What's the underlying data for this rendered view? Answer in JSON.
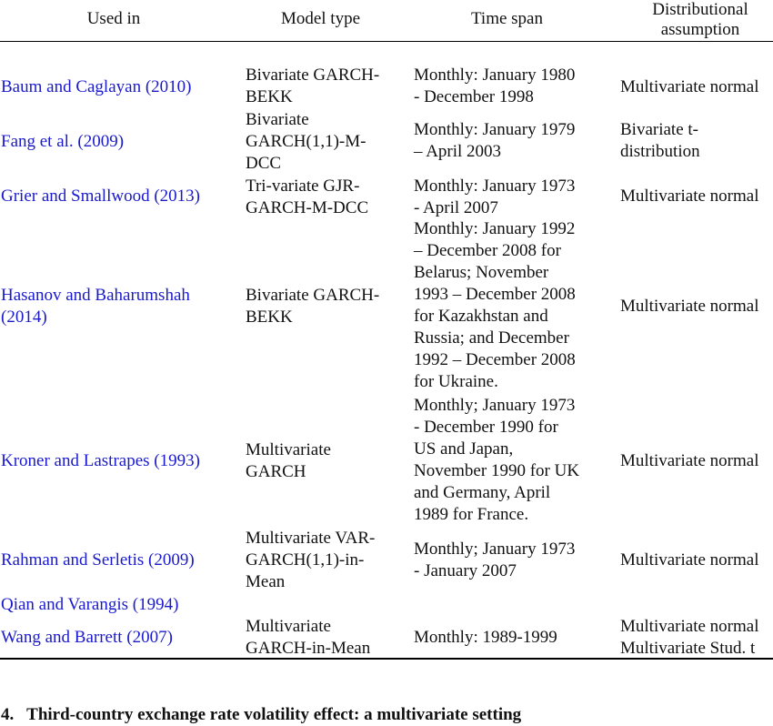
{
  "headers": {
    "used_in": "Used in",
    "model_type": "Model type",
    "time_span": "Time span",
    "dist_line1": "Distributional",
    "dist_line2": "assumption"
  },
  "rows": [
    {
      "used_in": [
        "Baum and Caglayan (2010)"
      ],
      "model": [
        "Bivariate GARCH-",
        "BEKK"
      ],
      "time": [
        "Monthly: January 1980",
        "- December 1998"
      ],
      "dist": [
        "Multivariate normal"
      ]
    },
    {
      "used_in": [
        "Fang et al. (2009)"
      ],
      "model": [
        "Bivariate",
        "GARCH(1,1)-M-",
        "DCC"
      ],
      "time": [
        "Monthly: January 1979",
        "– April 2003"
      ],
      "dist": [
        "Bivariate t-",
        "distribution"
      ]
    },
    {
      "used_in": [
        "Grier and Smallwood (2013)"
      ],
      "model": [
        "Tri-variate GJR-",
        "GARCH-M-DCC"
      ],
      "time": [
        "Monthly: January 1973",
        "- April 2007"
      ],
      "dist": [
        "Multivariate normal"
      ]
    },
    {
      "used_in": [
        "Hasanov and Baharumshah",
        "(2014)"
      ],
      "model": [
        "Bivariate GARCH-",
        "BEKK"
      ],
      "time": [
        "Monthly: January 1992",
        "– December 2008 for",
        "Belarus; November",
        "1993 – December 2008",
        "for Kazakhstan and",
        "Russia; and December",
        "1992 – December 2008",
        "for Ukraine."
      ],
      "dist": [
        "Multivariate normal"
      ]
    },
    {
      "used_in": [
        "Kroner and Lastrapes (1993)"
      ],
      "model": [
        "Multivariate",
        "GARCH"
      ],
      "time": [
        "Monthly; January 1973",
        "- December 1990 for",
        "US and Japan,",
        "November 1990 for UK",
        "and Germany, April",
        "1989 for France."
      ],
      "dist": [
        "Multivariate normal"
      ]
    },
    {
      "used_in": [
        "Rahman and Serletis (2009)"
      ],
      "model": [
        "Multivariate VAR-",
        "GARCH(1,1)-in-",
        "Mean"
      ],
      "time": [
        "Monthly; January 1973",
        "- January 2007"
      ],
      "dist": [
        "Multivariate normal"
      ]
    },
    {
      "used_in": [
        "Qian and Varangis (1994)"
      ],
      "model": [],
      "time": [],
      "dist": []
    },
    {
      "used_in": [
        "Wang and Barrett (2007)"
      ],
      "model": [
        "Multivariate",
        "GARCH-in-Mean"
      ],
      "time": [
        "Monthly: 1989-1999"
      ],
      "dist": [
        "Multivariate normal",
        "Multivariate Stud. t"
      ]
    }
  ],
  "section_heading": "4.   Third-country exchange rate volatility effect: a multivariate setting"
}
